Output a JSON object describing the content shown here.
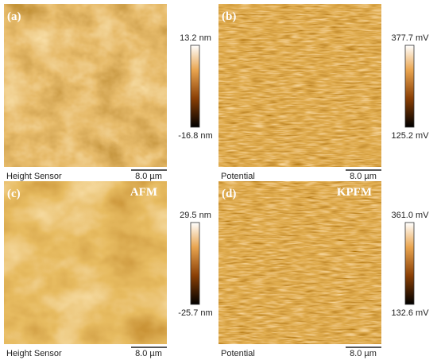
{
  "panels": [
    {
      "label": "(a)",
      "colorbar_max": "13.2 nm",
      "colorbar_min": "-16.8 nm",
      "caption": "Height Sensor",
      "scale": "8.0 µm"
    },
    {
      "label": "(b)",
      "colorbar_max": "377.7 mV",
      "colorbar_min": "125.2 mV",
      "caption": "Potential",
      "scale": "8.0 µm"
    },
    {
      "label": "(c)",
      "tag": "AFM",
      "colorbar_max": "29.5 nm",
      "colorbar_min": "-25.7 nm",
      "caption": "Height Sensor",
      "scale": "8.0 µm"
    },
    {
      "label": "(d)",
      "tag": "KPFM",
      "colorbar_max": "361.0 mV",
      "colorbar_min": "132.6 mV",
      "caption": "Potential",
      "scale": "8.0 µm"
    }
  ]
}
